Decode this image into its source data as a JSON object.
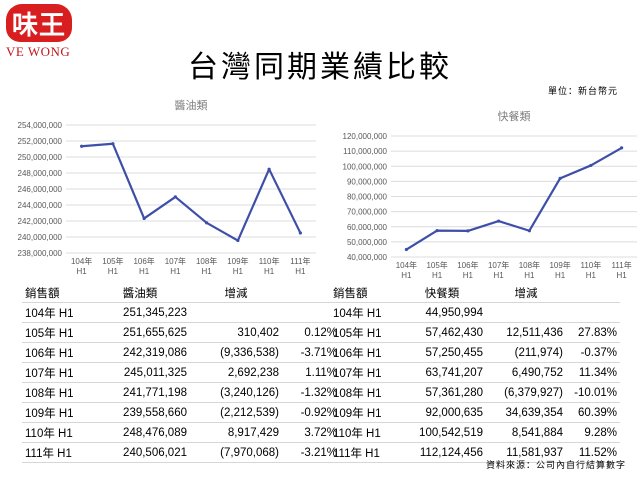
{
  "brand": {
    "logo_mark": "味王",
    "logo_text": "VE WONG"
  },
  "page": {
    "title": "台灣同期業績比較",
    "unit_note": "單位：新台幣元",
    "source_note": "資料來源：公司內自行結算數字"
  },
  "colors": {
    "line": "#3e4fa8",
    "grid": "#dcdcdc",
    "logo_red": "#d81e1e"
  },
  "chart_data": [
    {
      "type": "line",
      "title": "醬油類",
      "categories": [
        [
          "104年",
          "H1"
        ],
        [
          "105年",
          "H1"
        ],
        [
          "106年",
          "H1"
        ],
        [
          "107年",
          "H1"
        ],
        [
          "108年",
          "H1"
        ],
        [
          "109年",
          "H1"
        ],
        [
          "110年",
          "H1"
        ],
        [
          "111年",
          "H1"
        ]
      ],
      "series": [
        {
          "values": [
            251345223,
            251655625,
            242319086,
            245011325,
            241771198,
            239558660,
            248476089,
            240506021
          ]
        }
      ],
      "ylim": [
        238000000,
        254000000
      ],
      "yticks": [
        "238,000,000",
        "240,000,000",
        "242,000,000",
        "244,000,000",
        "246,000,000",
        "248,000,000",
        "250,000,000",
        "252,000,000",
        "254,000,000"
      ],
      "grid": true
    },
    {
      "type": "line",
      "title": "快餐類",
      "categories": [
        [
          "104年",
          "H1"
        ],
        [
          "105年",
          "H1"
        ],
        [
          "106年",
          "H1"
        ],
        [
          "107年",
          "H1"
        ],
        [
          "108年",
          "H1"
        ],
        [
          "109年",
          "H1"
        ],
        [
          "110年",
          "H1"
        ],
        [
          "111年",
          "H1"
        ]
      ],
      "series": [
        {
          "values": [
            44950994,
            57462430,
            57250455,
            63741207,
            57361280,
            92000635,
            100542519,
            112124456
          ]
        }
      ],
      "ylim": [
        40000000,
        120000000
      ],
      "yticks": [
        "40,000,000",
        "50,000,000",
        "60,000,000",
        "70,000,000",
        "80,000,000",
        "90,000,000",
        "100,000,000",
        "110,000,000",
        "120,000,000"
      ],
      "grid": true
    }
  ],
  "tables": {
    "soy": {
      "header": [
        "銷售額",
        "醬油類",
        "增減",
        ""
      ],
      "rows": [
        [
          "104年 H1",
          "251,345,223",
          "",
          ""
        ],
        [
          "105年 H1",
          "251,655,625",
          "310,402",
          "0.12%"
        ],
        [
          "106年 H1",
          "242,319,086",
          "(9,336,538)",
          "-3.71%"
        ],
        [
          "107年 H1",
          "245,011,325",
          "2,692,238",
          "1.11%"
        ],
        [
          "108年 H1",
          "241,771,198",
          "(3,240,126)",
          "-1.32%"
        ],
        [
          "109年 H1",
          "239,558,660",
          "(2,212,539)",
          "-0.92%"
        ],
        [
          "110年 H1",
          "248,476,089",
          "8,917,429",
          "3.72%"
        ],
        [
          "111年 H1",
          "240,506,021",
          "(7,970,068)",
          "-3.21%"
        ]
      ]
    },
    "fast": {
      "header": [
        "銷售額",
        "快餐類",
        "增減",
        ""
      ],
      "rows": [
        [
          "104年 H1",
          "44,950,994",
          "",
          ""
        ],
        [
          "105年 H1",
          "57,462,430",
          "12,511,436",
          "27.83%"
        ],
        [
          "106年 H1",
          "57,250,455",
          "(211,974)",
          "-0.37%"
        ],
        [
          "107年 H1",
          "63,741,207",
          "6,490,752",
          "11.34%"
        ],
        [
          "108年 H1",
          "57,361,280",
          "(6,379,927)",
          "-10.01%"
        ],
        [
          "109年 H1",
          "92,000,635",
          "34,639,354",
          "60.39%"
        ],
        [
          "110年 H1",
          "100,542,519",
          "8,541,884",
          "9.28%"
        ],
        [
          "111年 H1",
          "112,124,456",
          "11,581,937",
          "11.52%"
        ]
      ]
    }
  }
}
